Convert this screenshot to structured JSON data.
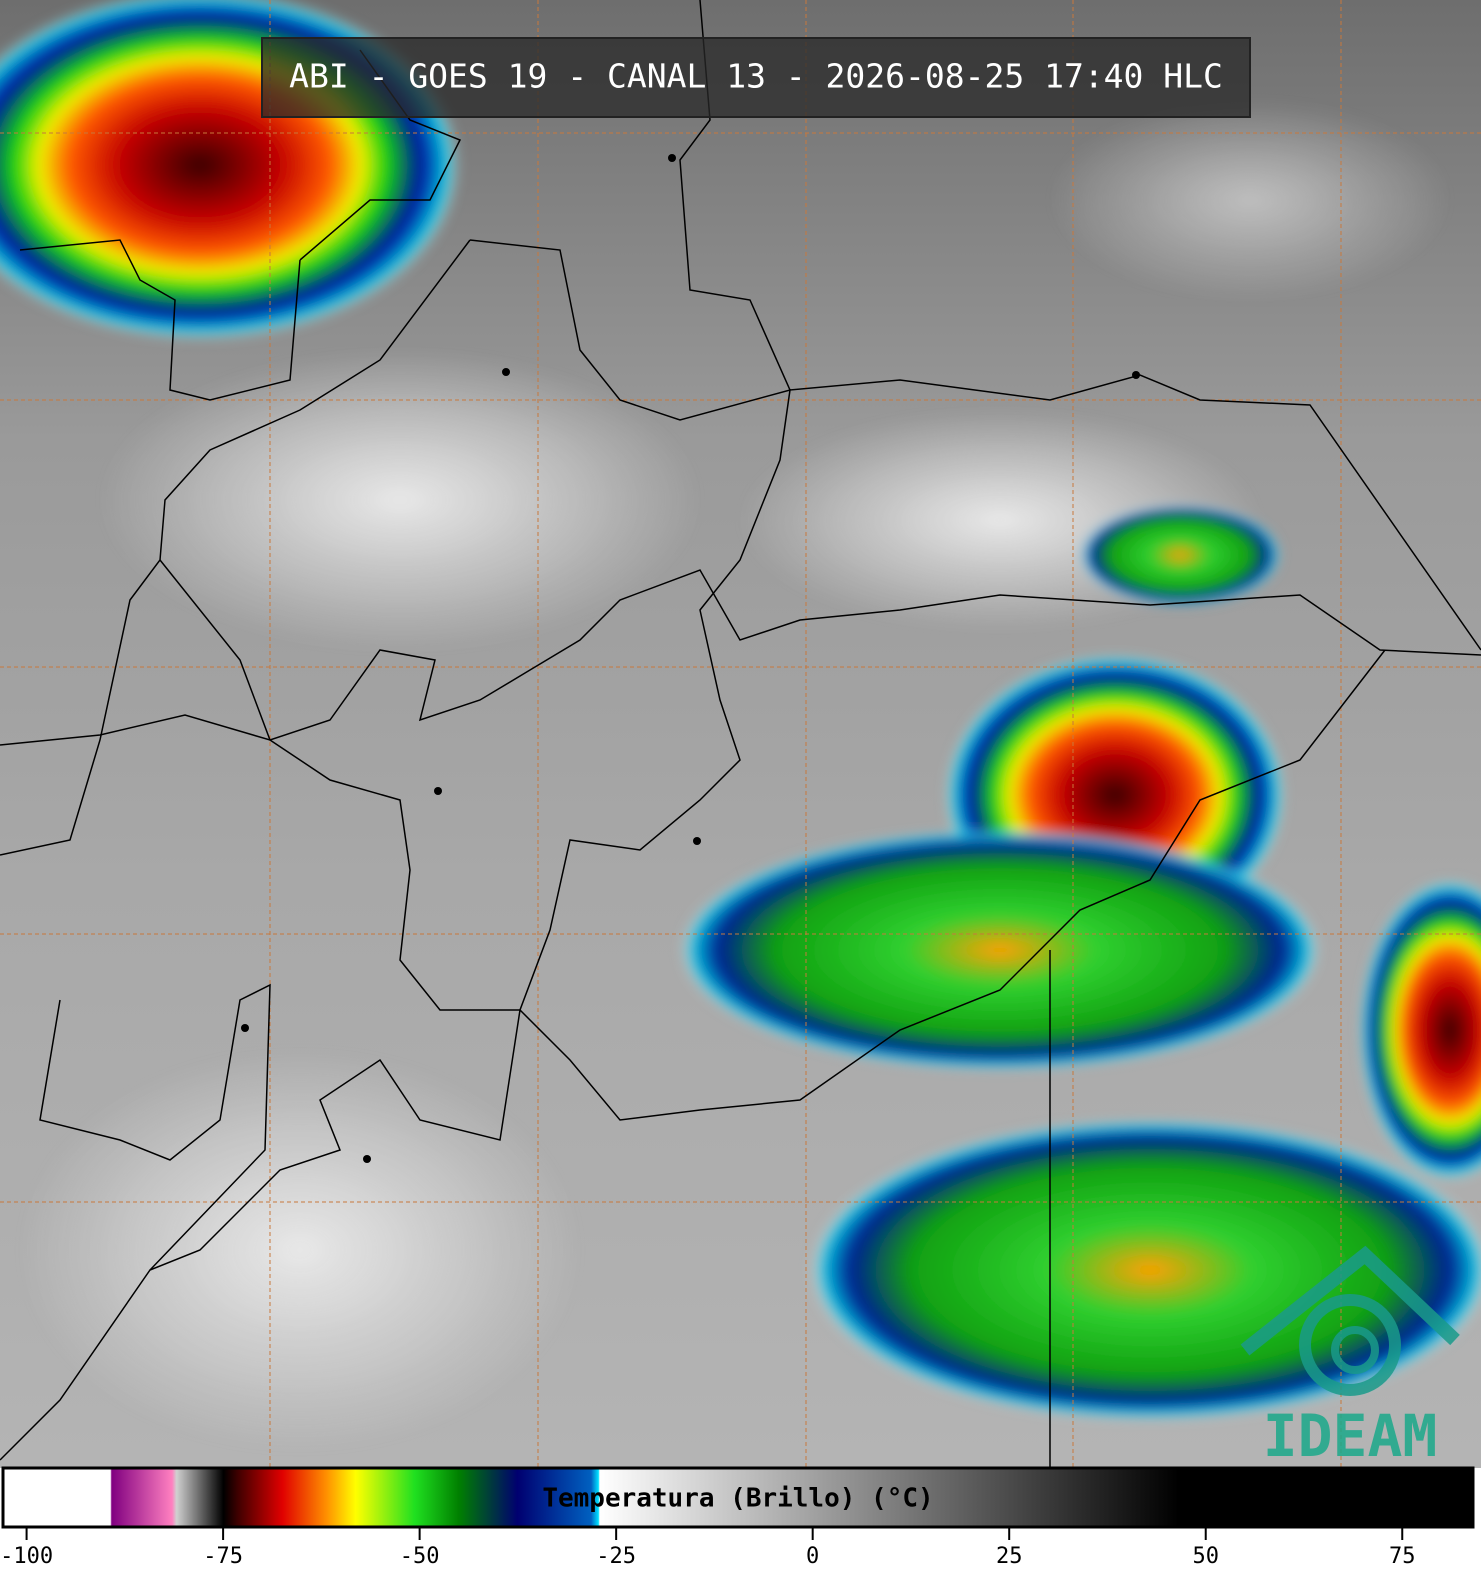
{
  "title": "ABI - GOES 19 - CANAL 13 - 2026-08-25 17:40 HLC",
  "colorbar": {
    "label": "Temperatura (Brillo) (°C)",
    "lim": [
      -103,
      84
    ],
    "ticks": [
      -100,
      -75,
      -50,
      -25,
      0,
      25,
      50,
      75
    ]
  },
  "logo": "IDEAM"
}
